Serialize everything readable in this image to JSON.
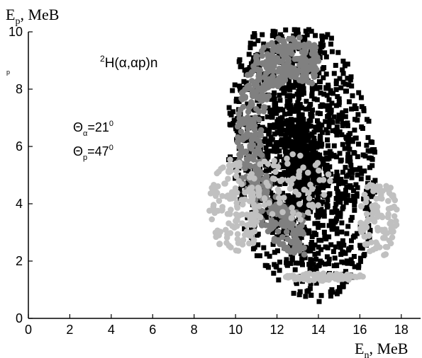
{
  "chart_data": {
    "type": "scatter",
    "title": "",
    "xlabel": {
      "main": "E",
      "sub": "n",
      "rest": ", MeB"
    },
    "ylabel": {
      "main": "E",
      "sub": "p",
      "rest": ", MeB"
    },
    "xlim": [
      0,
      19
    ],
    "ylim": [
      0,
      10
    ],
    "xticks": [
      0,
      2,
      4,
      6,
      8,
      10,
      12,
      14,
      16,
      18
    ],
    "yticks": [
      0,
      2,
      4,
      6,
      8,
      10
    ],
    "grid": false,
    "stray_label": "p",
    "annotations": {
      "reaction": {
        "sup": "2",
        "text": "H(α,αp)n"
      },
      "theta_alpha": {
        "sym": "Θ",
        "sub": "α",
        "text": "=21",
        "sup": "0"
      },
      "theta_p": {
        "sym": "Θ",
        "sub": "p",
        "text": "=47",
        "sup": "0"
      }
    },
    "colors": {
      "black": "#000000",
      "dark_gray": "#808080",
      "light_gray": "#c0c0c0"
    },
    "regions": [
      {
        "name": "kinematic-locus",
        "marker": "square",
        "color": "#000000",
        "cx": 13.2,
        "cy": 5.6,
        "ra": 5.1,
        "rb": 3.5,
        "tilt_deg": 103,
        "thickness": 1.0,
        "density": 1700
      },
      {
        "name": "upper-arc",
        "marker": "circle",
        "color": "#808080",
        "cx": 13.0,
        "cy": 6.0,
        "ra": 3.9,
        "rb": 2.9,
        "tilt_deg": 103,
        "thickness": 0.4,
        "start_deg": -40,
        "end_deg": 170,
        "density": 520
      },
      {
        "name": "left-cluster",
        "marker": "circle",
        "color": "#c0c0c0",
        "cx": 10.0,
        "cy": 3.9,
        "ra": 1.3,
        "rb": 1.7,
        "tilt_deg": 0,
        "density": 140
      },
      {
        "name": "right-cluster",
        "marker": "circle",
        "color": "#c0c0c0",
        "cx": 16.9,
        "cy": 3.5,
        "ra": 0.9,
        "rb": 1.4,
        "tilt_deg": 0,
        "density": 100
      },
      {
        "name": "inner-band",
        "marker": "circle",
        "color": "#c0c0c0",
        "cx": 12.7,
        "cy": 4.6,
        "ra": 1.9,
        "rb": 1.3,
        "tilt_deg": 0,
        "density": 70
      },
      {
        "name": "bottom-band",
        "marker": "circle",
        "color": "#c0c0c0",
        "cx": 14.3,
        "cy": 1.45,
        "ra": 1.9,
        "rb": 0.14,
        "tilt_deg": 0,
        "density": 70
      }
    ]
  }
}
